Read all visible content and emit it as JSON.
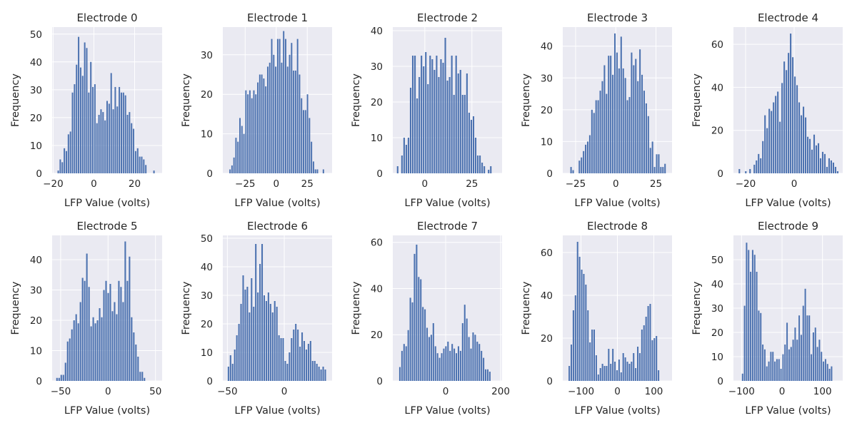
{
  "figure": {
    "background": "#ffffff",
    "axes_facecolor": "#eaeaf2",
    "grid_color": "#ffffff",
    "bar_color": "#4c72b0"
  },
  "chart_data": [
    {
      "type": "bar",
      "title": "Electrode 0",
      "xlabel": "LFP Value (volts)",
      "ylabel": "Frequency",
      "grid": true,
      "xlim": [
        -20.5,
        33.5
      ],
      "ylim": [
        0,
        52.5
      ],
      "xticks": [
        -20,
        0,
        20
      ],
      "yticks": [
        0,
        10,
        20,
        30,
        40,
        50
      ],
      "x_start": -18.0,
      "bin_width": 1.0,
      "values": [
        1,
        5,
        4,
        9,
        8,
        14,
        15,
        29,
        32,
        39,
        49,
        38,
        35,
        47,
        45,
        29,
        40,
        31,
        32,
        18,
        21,
        23,
        22,
        19,
        26,
        25,
        36,
        23,
        31,
        24,
        31,
        29,
        29,
        28,
        21,
        22,
        18,
        16,
        8,
        9,
        6,
        6,
        5,
        3,
        0,
        0,
        0,
        1
      ]
    },
    {
      "type": "bar",
      "title": "Electrode 1",
      "xlabel": "LFP Value (volts)",
      "ylabel": "Frequency",
      "grid": true,
      "xlim": [
        -43,
        45
      ],
      "ylim": [
        0,
        37
      ],
      "xticks": [
        -25,
        0,
        25
      ],
      "yticks": [
        0,
        10,
        20,
        30
      ],
      "x_start": -38.0,
      "bin_width": 1.6,
      "values": [
        1,
        2,
        4,
        9,
        8,
        14,
        12,
        10,
        21,
        20,
        21,
        19,
        21,
        20,
        23,
        25,
        25,
        24,
        22,
        27,
        28,
        34,
        30,
        27,
        34,
        34,
        28,
        36,
        34,
        27,
        30,
        33,
        26,
        26,
        34,
        25,
        19,
        16,
        16,
        20,
        14,
        8,
        3,
        1,
        1,
        0,
        0,
        1
      ]
    },
    {
      "type": "bar",
      "title": "Electrode 2",
      "xlabel": "LFP Value (volts)",
      "ylabel": "Frequency",
      "grid": true,
      "xlim": [
        -17,
        41
      ],
      "ylim": [
        0,
        41
      ],
      "xticks": [
        0,
        25
      ],
      "yticks": [
        0,
        10,
        20,
        30,
        40
      ],
      "x_start": -15.0,
      "bin_width": 1.15,
      "values": [
        2,
        0,
        5,
        10,
        8,
        10,
        24,
        33,
        33,
        21,
        27,
        33,
        30,
        34,
        25,
        33,
        32,
        29,
        33,
        27,
        32,
        31,
        38,
        26,
        27,
        33,
        22,
        33,
        28,
        29,
        22,
        22,
        28,
        17,
        15,
        16,
        10,
        5,
        5,
        3,
        2,
        0,
        1,
        2,
        0,
        0,
        0,
        0
      ]
    },
    {
      "type": "bar",
      "title": "Electrode 3",
      "xlabel": "LFP Value (volts)",
      "ylabel": "Frequency",
      "grid": true,
      "xlim": [
        -33,
        35
      ],
      "ylim": [
        0,
        46
      ],
      "xticks": [
        -25,
        0,
        25
      ],
      "yticks": [
        0,
        10,
        20,
        30,
        40
      ],
      "x_start": -28.5,
      "bin_width": 1.3,
      "values": [
        2,
        1,
        0,
        0,
        4,
        5,
        7,
        9,
        10,
        12,
        20,
        19,
        23,
        23,
        26,
        29,
        34,
        25,
        37,
        37,
        31,
        44,
        38,
        33,
        43,
        33,
        30,
        23,
        24,
        38,
        34,
        36,
        29,
        39,
        31,
        26,
        22,
        18,
        8,
        10,
        2,
        6,
        6,
        2,
        2,
        3,
        0,
        0
      ]
    },
    {
      "type": "bar",
      "title": "Electrode 4",
      "xlabel": "LFP Value (volts)",
      "ylabel": "Frequency",
      "grid": true,
      "xlim": [
        -25,
        20
      ],
      "ylim": [
        0,
        68
      ],
      "xticks": [
        -20,
        0
      ],
      "yticks": [
        0,
        20,
        40,
        60
      ],
      "x_start": -23.0,
      "bin_width": 0.88,
      "values": [
        2,
        0,
        0,
        1,
        0,
        2,
        0,
        4,
        6,
        9,
        7,
        15,
        27,
        21,
        30,
        29,
        33,
        36,
        38,
        24,
        42,
        52,
        48,
        56,
        65,
        54,
        45,
        41,
        33,
        27,
        31,
        26,
        17,
        16,
        11,
        18,
        13,
        14,
        7,
        10,
        9,
        3,
        7,
        6,
        5,
        3,
        1,
        0
      ]
    },
    {
      "type": "bar",
      "title": "Electrode 5",
      "xlabel": "LFP Value (volts)",
      "ylabel": "Frequency",
      "grid": true,
      "xlim": [
        -59,
        57
      ],
      "ylim": [
        0,
        48
      ],
      "xticks": [
        -50,
        0,
        50
      ],
      "yticks": [
        0,
        10,
        20,
        30,
        40
      ],
      "x_start": -55.0,
      "bin_width": 2.25,
      "values": [
        1,
        1,
        2,
        2,
        6,
        13,
        14,
        17,
        20,
        22,
        19,
        26,
        34,
        33,
        42,
        31,
        18,
        21,
        19,
        20,
        24,
        21,
        30,
        33,
        29,
        32,
        23,
        26,
        22,
        33,
        31,
        26,
        46,
        33,
        41,
        21,
        16,
        12,
        8,
        3,
        3,
        1,
        0,
        0,
        0,
        0,
        0,
        0
      ]
    },
    {
      "type": "bar",
      "title": "Electrode 6",
      "xlabel": "LFP Value (volts)",
      "ylabel": "Frequency",
      "grid": true,
      "xlim": [
        -54,
        42
      ],
      "ylim": [
        0,
        51
      ],
      "xticks": [
        -50,
        0
      ],
      "yticks": [
        0,
        10,
        20,
        30,
        40,
        50
      ],
      "x_start": -50.0,
      "bin_width": 1.85,
      "values": [
        5,
        9,
        6,
        11,
        16,
        20,
        27,
        37,
        32,
        33,
        24,
        36,
        26,
        48,
        31,
        41,
        48,
        30,
        28,
        31,
        27,
        24,
        28,
        26,
        16,
        15,
        15,
        7,
        6,
        10,
        15,
        18,
        20,
        18,
        12,
        17,
        14,
        11,
        13,
        14,
        7,
        7,
        6,
        5,
        4,
        5,
        4,
        0
      ]
    },
    {
      "type": "bar",
      "title": "Electrode 7",
      "xlabel": "LFP Value (volts)",
      "ylabel": "Frequency",
      "grid": true,
      "xlim": [
        -192,
        205
      ],
      "ylim": [
        0,
        63
      ],
      "xticks": [
        0,
        200
      ],
      "yticks": [
        0,
        20,
        40,
        60
      ],
      "x_start": -170.0,
      "bin_width": 7.6,
      "values": [
        6,
        13,
        16,
        15,
        22,
        36,
        34,
        55,
        59,
        45,
        44,
        32,
        31,
        23,
        19,
        20,
        25,
        15,
        12,
        10,
        12,
        14,
        15,
        17,
        13,
        16,
        14,
        12,
        15,
        13,
        25,
        33,
        27,
        19,
        14,
        21,
        20,
        17,
        16,
        13,
        10,
        5,
        5,
        4,
        0,
        0,
        0,
        0
      ]
    },
    {
      "type": "bar",
      "title": "Electrode 8",
      "xlabel": "LFP Value (volts)",
      "ylabel": "Frequency",
      "grid": true,
      "xlim": [
        -150,
        150
      ],
      "ylim": [
        0,
        68
      ],
      "xticks": [
        -100,
        0,
        100
      ],
      "yticks": [
        0,
        20,
        40,
        60
      ],
      "x_start": -135.0,
      "bin_width": 5.7,
      "values": [
        7,
        17,
        33,
        40,
        65,
        58,
        52,
        50,
        45,
        33,
        18,
        24,
        24,
        12,
        3,
        6,
        8,
        7,
        7,
        15,
        8,
        15,
        9,
        5,
        10,
        4,
        13,
        11,
        9,
        8,
        9,
        13,
        6,
        16,
        13,
        24,
        26,
        30,
        35,
        36,
        19,
        20,
        21,
        5,
        0,
        0,
        0,
        0
      ]
    },
    {
      "type": "bar",
      "title": "Electrode 9",
      "xlabel": "LFP Value (volts)",
      "ylabel": "Frequency",
      "grid": true,
      "xlim": [
        -120,
        150
      ],
      "ylim": [
        0,
        60
      ],
      "xticks": [
        -100,
        0,
        100
      ],
      "yticks": [
        0,
        10,
        20,
        30,
        40,
        50
      ],
      "x_start": -100.0,
      "bin_width": 5.0,
      "values": [
        3,
        31,
        57,
        54,
        45,
        54,
        52,
        45,
        29,
        28,
        15,
        13,
        6,
        8,
        12,
        12,
        8,
        9,
        9,
        5,
        11,
        15,
        24,
        13,
        14,
        17,
        22,
        17,
        27,
        19,
        31,
        38,
        27,
        27,
        11,
        20,
        22,
        14,
        17,
        12,
        8,
        9,
        7,
        5,
        6,
        0,
        0,
        0
      ]
    }
  ]
}
